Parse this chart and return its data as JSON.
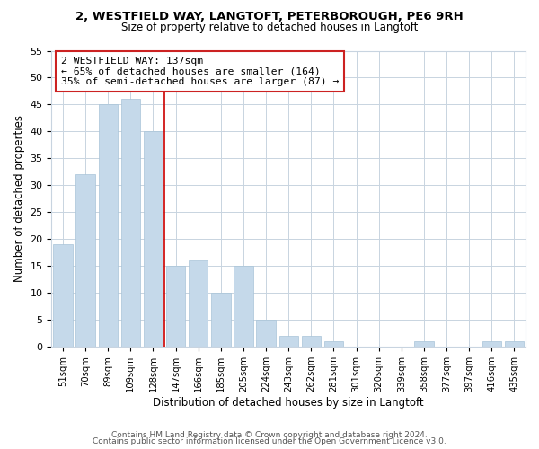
{
  "title_line1": "2, WESTFIELD WAY, LANGTOFT, PETERBOROUGH, PE6 9RH",
  "title_line2": "Size of property relative to detached houses in Langtoft",
  "xlabel": "Distribution of detached houses by size in Langtoft",
  "ylabel": "Number of detached properties",
  "bar_labels": [
    "51sqm",
    "70sqm",
    "89sqm",
    "109sqm",
    "128sqm",
    "147sqm",
    "166sqm",
    "185sqm",
    "205sqm",
    "224sqm",
    "243sqm",
    "262sqm",
    "281sqm",
    "301sqm",
    "320sqm",
    "339sqm",
    "358sqm",
    "377sqm",
    "397sqm",
    "416sqm",
    "435sqm"
  ],
  "bar_values": [
    19,
    32,
    45,
    46,
    40,
    15,
    16,
    10,
    15,
    5,
    2,
    2,
    1,
    0,
    0,
    0,
    1,
    0,
    0,
    1,
    1
  ],
  "bar_color": "#c5d9ea",
  "bar_edge_color": "#a8c4d8",
  "vline_x": 4.5,
  "vline_color": "#cc0000",
  "annotation_title": "2 WESTFIELD WAY: 137sqm",
  "annotation_line2": "← 65% of detached houses are smaller (164)",
  "annotation_line3": "35% of semi-detached houses are larger (87) →",
  "ylim": [
    0,
    55
  ],
  "yticks": [
    0,
    5,
    10,
    15,
    20,
    25,
    30,
    35,
    40,
    45,
    50,
    55
  ],
  "footer_line1": "Contains HM Land Registry data © Crown copyright and database right 2024.",
  "footer_line2": "Contains public sector information licensed under the Open Government Licence v3.0.",
  "background_color": "#ffffff",
  "grid_color": "#c8d4e0"
}
